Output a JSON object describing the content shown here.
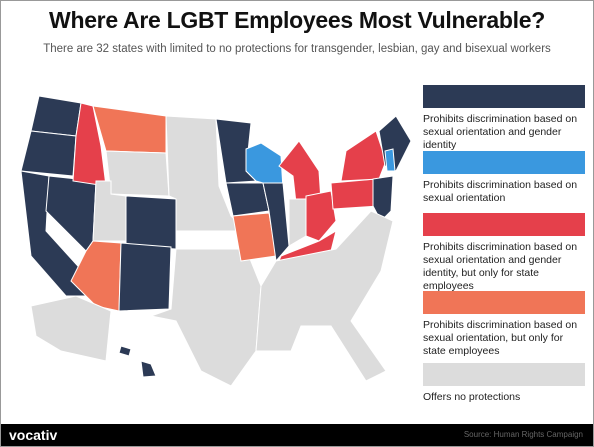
{
  "header": {
    "title": "Where Are LGBT Employees Most Vulnerable?",
    "subtitle": "There are 32 states with limited to no protections for transgender, lesbian, gay and bisexual workers"
  },
  "legend": {
    "items": [
      {
        "label": "Prohibits discrimination based on sexual orientation and gender identity",
        "color": "#2c3a55"
      },
      {
        "label": "Prohibits discrimination based on sexual orientation",
        "color": "#3a98df"
      },
      {
        "label": "Prohibits discrimination based on sexual orientation and gender identity, but only for state employees",
        "color": "#e5404b"
      },
      {
        "label": "Prohibits discrimination based on sexual orientation, but only for state employees",
        "color": "#f07557"
      },
      {
        "label": "Offers no protections",
        "color": "#dcdcdc"
      }
    ]
  },
  "footer": {
    "logo": "vocativ",
    "source": "Source: Human Rights Campaign"
  }
}
